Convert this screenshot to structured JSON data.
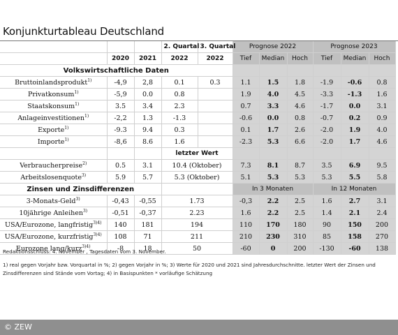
{
  "title": "Konjunkturtableau Deutschland",
  "header": {
    "y2020": "2020",
    "y2021": "2021",
    "q2_top": "2. Quartal",
    "q2_year": "2022",
    "q3_top": "3. Quartal",
    "q3_year": "2022",
    "prognose_2022": "Prognose 2022",
    "prognose_2023": "Prognose 2023",
    "tief": "Tief",
    "median": "Median",
    "hoch": "Hoch"
  },
  "sections": {
    "volkswirtschaft": "Volkswirtschaftliche Daten",
    "zinsen": "Zinsen und Zinsdifferenzen"
  },
  "headers": {
    "letzter_wert": "letzter Wert",
    "in_3_monaten": "In 3 Monaten",
    "in_12_monaten": "In 12 Monaten"
  },
  "rows_a": [
    {
      "label": "Bruttoinlandsprodukt",
      "sup": "1)",
      "v2020": "-4,9",
      "v2021": "2,8",
      "q2": "0.1",
      "q3": "0.3",
      "p22": [
        "1.1",
        "1.5",
        "1.8"
      ],
      "p23": [
        "-1.9",
        "-0.6",
        "0.8"
      ]
    },
    {
      "label": "Privatkonsum",
      "sup": "1)",
      "v2020": "-5,9",
      "v2021": "0.0",
      "q2": "0.8",
      "q3": "",
      "p22": [
        "1.9",
        "4.0",
        "4.5"
      ],
      "p23": [
        "-3.3",
        "-1.3",
        "1.6"
      ]
    },
    {
      "label": "Staatskonsum",
      "sup": "1)",
      "v2020": "3.5",
      "v2021": "3.4",
      "q2": "2.3",
      "q3": "",
      "p22": [
        "0.7",
        "3.3",
        "4.6"
      ],
      "p23": [
        "-1.7",
        "0.0",
        "3.1"
      ]
    },
    {
      "label": "Anlageinvestitionen",
      "sup": "1)",
      "v2020": "-2,2",
      "v2021": "1.3",
      "q2": "-1.3",
      "q3": "",
      "p22": [
        "-0.6",
        "0.0",
        "0.8"
      ],
      "p23": [
        "-0.7",
        "0.2",
        "0.9"
      ]
    },
    {
      "label": "Exporte",
      "sup": "1)",
      "v2020": "-9.3",
      "v2021": "9.4",
      "q2": "0.3",
      "q3": "",
      "p22": [
        "0.1",
        "1.7",
        "2.6"
      ],
      "p23": [
        "-2.0",
        "1.9",
        "4.0"
      ]
    },
    {
      "label": "Importe",
      "sup": "1)",
      "v2020": "-8,6",
      "v2021": "8.6",
      "q2": "1.6",
      "q3": "",
      "p22": [
        "-2.3",
        "5.3",
        "6.6"
      ],
      "p23": [
        "-2.0",
        "1.7",
        "4.6"
      ]
    }
  ],
  "rows_b": [
    {
      "label": "Verbraucherpreise",
      "sup": "2)",
      "v2020": "0.5",
      "v2021": "3.1",
      "last": "10.4 (Oktober)",
      "p22": [
        "7.3",
        "8.1",
        "8.7"
      ],
      "p23": [
        "3.5",
        "6.9",
        "9.5"
      ]
    },
    {
      "label": "Arbeitslosenquote",
      "sup": "3)",
      "v2020": "5.9",
      "v2021": "5.7",
      "last": "5.3 (Oktober)",
      "p22": [
        "5.1",
        "5.3",
        "5.3"
      ],
      "p23": [
        "5.3",
        "5.5",
        "5.8"
      ]
    }
  ],
  "rows_c": [
    {
      "label": "3-Monats-Geld",
      "sup": "3)",
      "v2020": "-0,43",
      "v2021": "-0,55",
      "last": "1.73",
      "p22": [
        "-0,3",
        "2.2",
        "2.5"
      ],
      "p23": [
        "1.6",
        "2.7",
        "3.1"
      ]
    },
    {
      "label": "10jährige Anleihen",
      "sup": "3)",
      "v2020": "-0,51",
      "v2021": "-0,37",
      "last": "2.23",
      "p22": [
        "1.6",
        "2.2",
        "2.5"
      ],
      "p23": [
        "1.4",
        "2.1",
        "2.4"
      ]
    },
    {
      "label": "USA/Eurozone, langfristig",
      "sup": "3)4)",
      "v2020": "140",
      "v2021": "181",
      "last": "194",
      "p22": [
        "110",
        "170",
        "180"
      ],
      "p23": [
        "90",
        "150",
        "200"
      ]
    },
    {
      "label": "USA/Eurozone, kurzfristig",
      "sup": "3)4)",
      "v2020": "108",
      "v2021": "71",
      "last": "211",
      "p22": [
        "210",
        "230",
        "310"
      ],
      "p23": [
        "85",
        "158",
        "270"
      ]
    },
    {
      "label": "Eurozone lang/kurz",
      "sup": "3)4)",
      "v2020": "-8",
      "v2021": "18",
      "last": "50",
      "p22": [
        "-60",
        "0",
        "200"
      ],
      "p23": [
        "-130",
        "-60",
        "138"
      ]
    }
  ],
  "notes": {
    "redaktion": "Redaktionsschluss: 4. November , Tagesdaten vom 3. November.",
    "line1": "1) real gegen Vorjahr bzw. Vorquartal in %; 2) gegen Vorjahr in %; 3) Werte für 2020 und 2021 sind Jahresdurchschnitte. letzter Wert der Zinsen und",
    "line2": "Zinsdifferenzen sind Stände vom Vortag; 4) in Basispunkten * vorläufige Schätzung"
  },
  "footer": "© ZEW"
}
